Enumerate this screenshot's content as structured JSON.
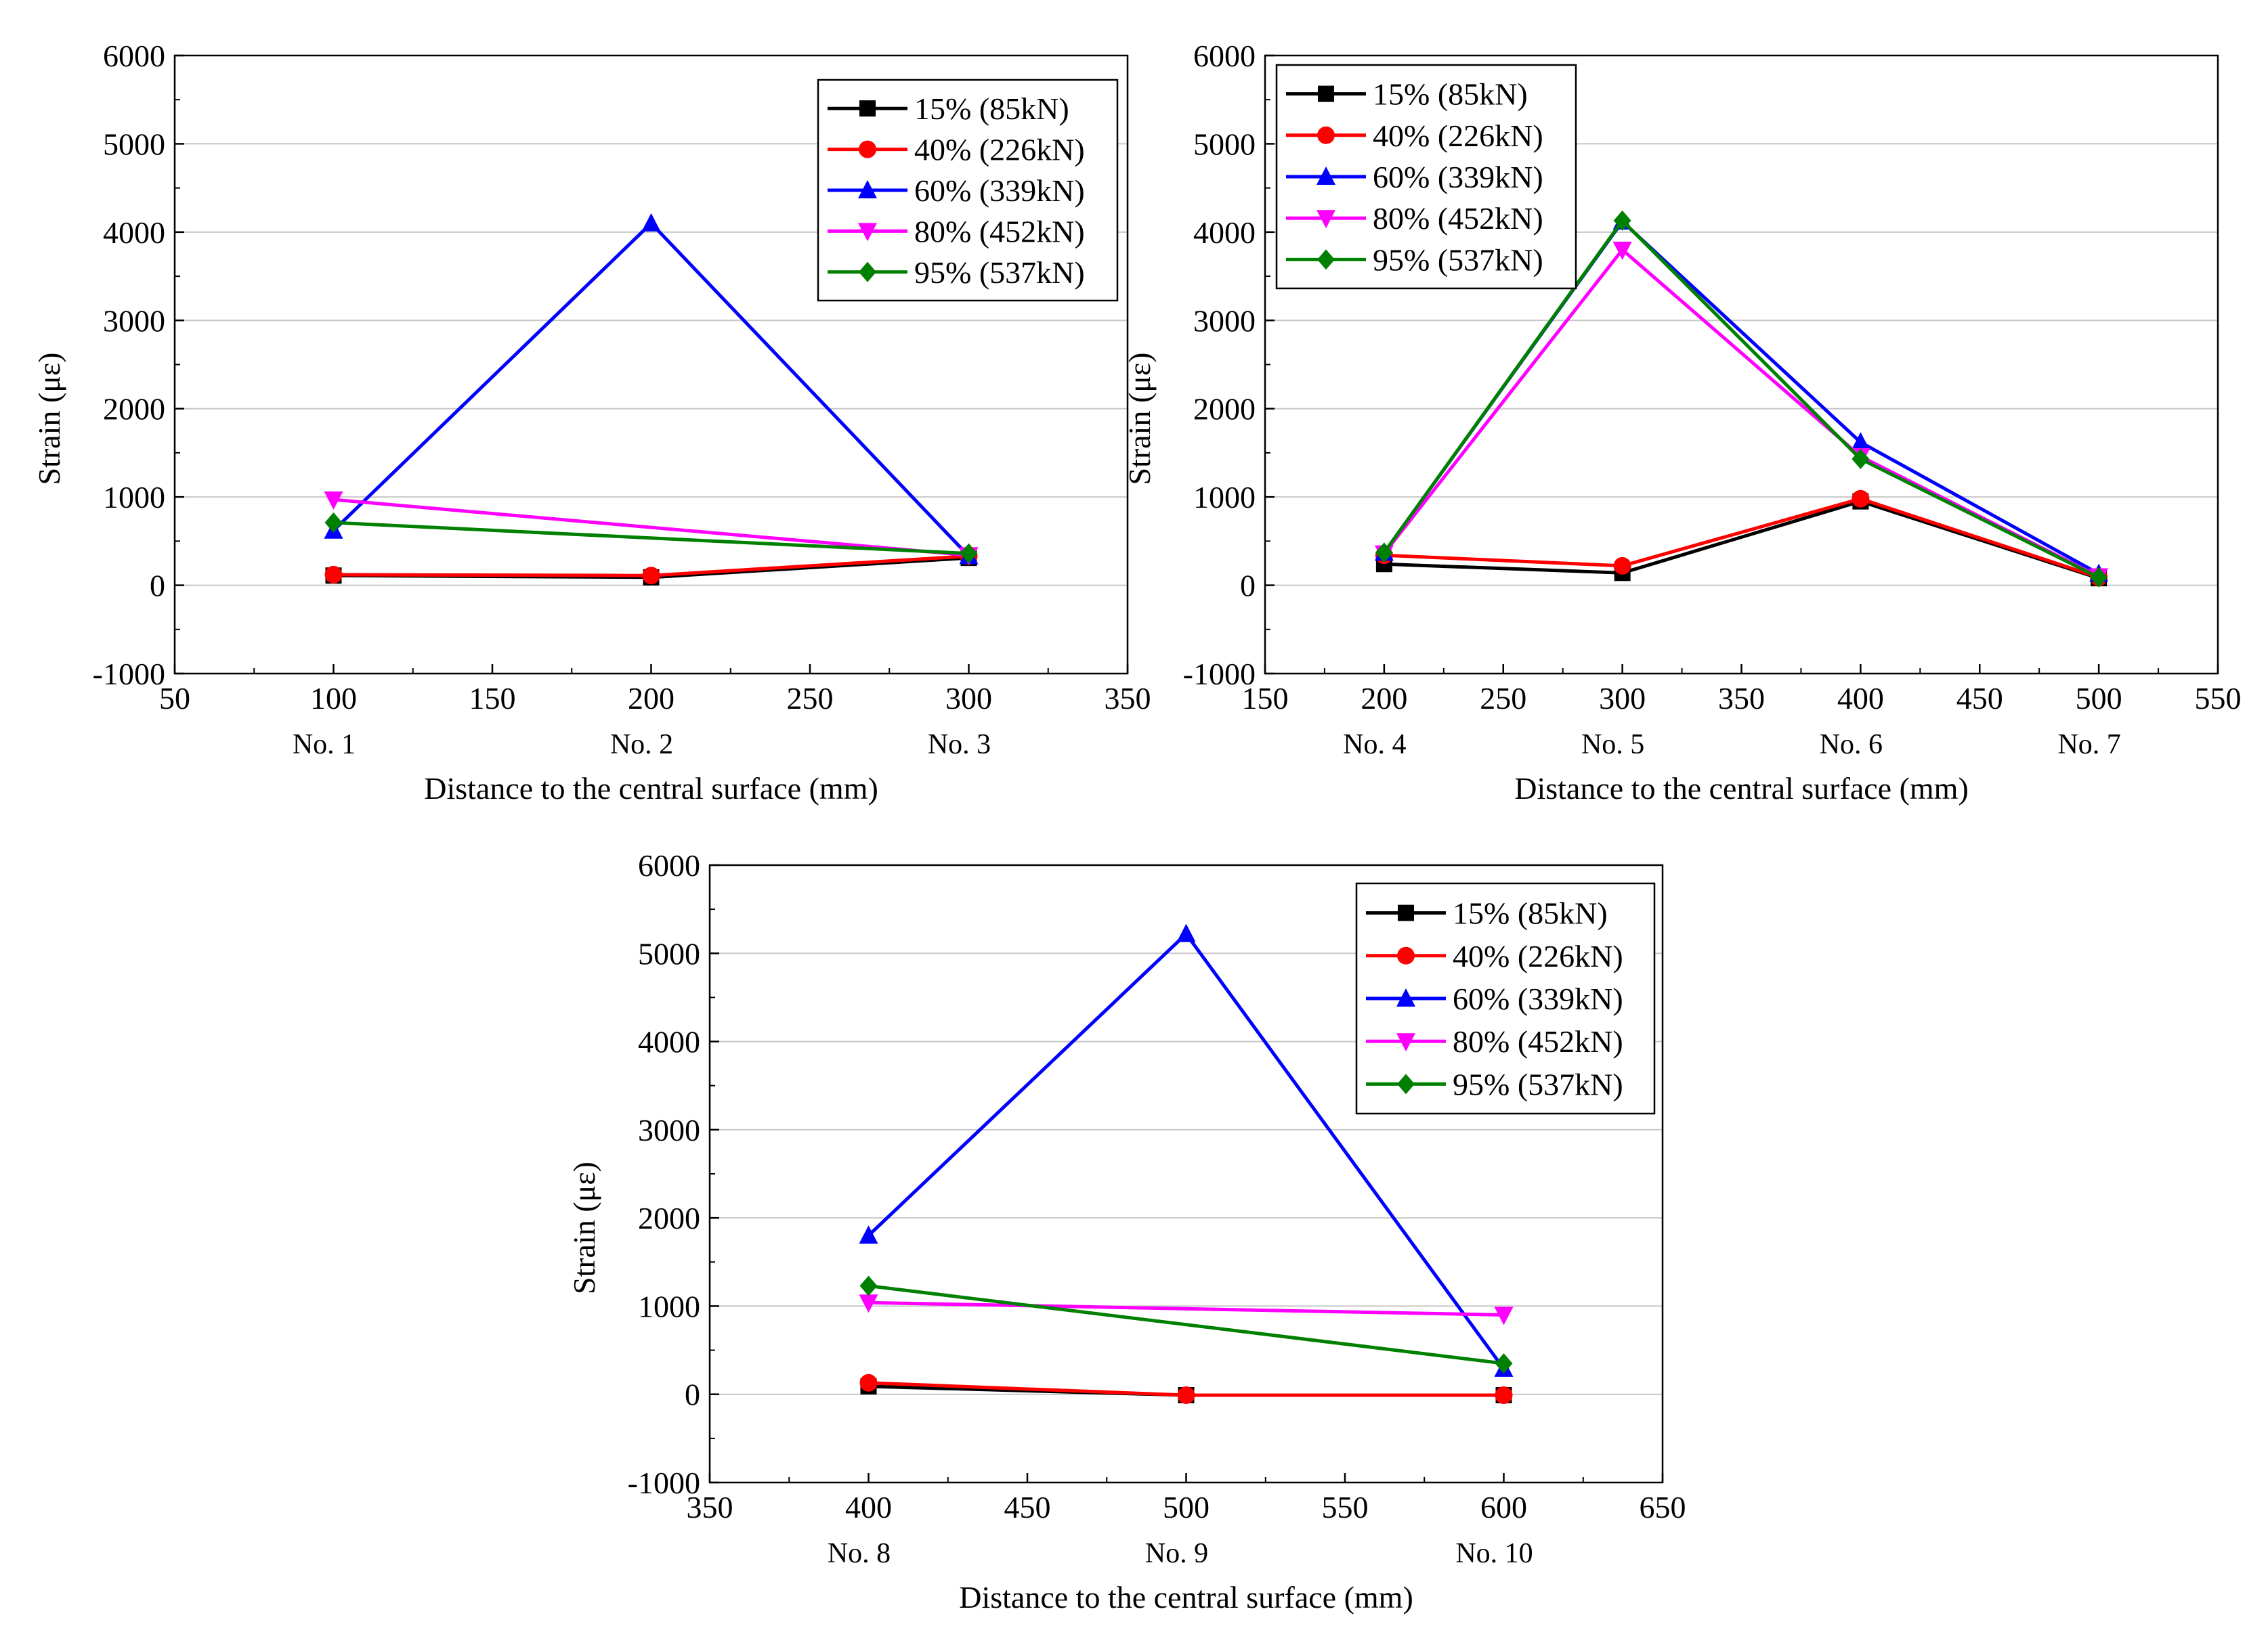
{
  "chart_data": [
    {
      "type": "line",
      "title": "",
      "xlabel": "Distance to the central surface (mm)",
      "ylabel": "Strain (με)",
      "xlim": [
        50,
        350
      ],
      "ylim": [
        -1000,
        6000
      ],
      "xticks": [
        50,
        100,
        150,
        200,
        250,
        300,
        350
      ],
      "yticks": [
        -1000,
        0,
        1000,
        2000,
        3000,
        4000,
        5000,
        6000
      ],
      "grid": "horizontal",
      "legend_position": "top-right",
      "gauges": [
        {
          "x": 100,
          "label": "No. 1"
        },
        {
          "x": 200,
          "label": "No. 2"
        },
        {
          "x": 300,
          "label": "No. 3"
        }
      ],
      "x": [
        100,
        200,
        300
      ],
      "series": [
        {
          "name": "15% (85kN)",
          "values": [
            110,
            90,
            310
          ]
        },
        {
          "name": "40% (226kN)",
          "values": [
            120,
            110,
            330
          ]
        },
        {
          "name": "60% (339kN)",
          "values": [
            620,
            4100,
            330
          ]
        },
        {
          "name": "80% (452kN)",
          "values": [
            970,
            null,
            340
          ]
        },
        {
          "name": "95% (537kN)",
          "values": [
            710,
            null,
            360
          ]
        }
      ]
    },
    {
      "type": "line",
      "title": "",
      "xlabel": "Distance to the central surface (mm)",
      "ylabel": "Strain (με)",
      "xlim": [
        150,
        550
      ],
      "ylim": [
        -1000,
        6000
      ],
      "xticks": [
        150,
        200,
        250,
        300,
        350,
        400,
        450,
        500,
        550
      ],
      "yticks": [
        -1000,
        0,
        1000,
        2000,
        3000,
        4000,
        5000,
        6000
      ],
      "grid": "horizontal",
      "legend_position": "top-left",
      "gauges": [
        {
          "x": 200,
          "label": "No. 4"
        },
        {
          "x": 300,
          "label": "No. 5"
        },
        {
          "x": 400,
          "label": "No. 6"
        },
        {
          "x": 500,
          "label": "No. 7"
        }
      ],
      "x": [
        200,
        300,
        400,
        500
      ],
      "series": [
        {
          "name": "15% (85kN)",
          "values": [
            240,
            140,
            950,
            80
          ]
        },
        {
          "name": "40% (226kN)",
          "values": [
            340,
            220,
            980,
            90
          ]
        },
        {
          "name": "60% (339kN)",
          "values": [
            370,
            4120,
            1620,
            130
          ]
        },
        {
          "name": "80% (452kN)",
          "values": [
            360,
            3800,
            1460,
            100
          ]
        },
        {
          "name": "95% (537kN)",
          "values": [
            370,
            4130,
            1430,
            90
          ]
        }
      ]
    },
    {
      "type": "line",
      "title": "",
      "xlabel": "Distance to the central surface (mm)",
      "ylabel": "Strain (με)",
      "xlim": [
        350,
        650
      ],
      "ylim": [
        -1000,
        6000
      ],
      "xticks": [
        350,
        400,
        450,
        500,
        550,
        600,
        650
      ],
      "yticks": [
        -1000,
        0,
        1000,
        2000,
        3000,
        4000,
        5000,
        6000
      ],
      "grid": "horizontal",
      "legend_position": "top-right",
      "gauges": [
        {
          "x": 400,
          "label": "No. 8"
        },
        {
          "x": 500,
          "label": "No. 9"
        },
        {
          "x": 600,
          "label": "No. 10"
        }
      ],
      "x": [
        400,
        500,
        600
      ],
      "series": [
        {
          "name": "15% (85kN)",
          "values": [
            90,
            -10,
            -10
          ]
        },
        {
          "name": "40% (226kN)",
          "values": [
            130,
            -10,
            -10
          ]
        },
        {
          "name": "60% (339kN)",
          "values": [
            1800,
            5220,
            290
          ]
        },
        {
          "name": "80% (452kN)",
          "values": [
            1040,
            null,
            900
          ]
        },
        {
          "name": "95% (537kN)",
          "values": [
            1230,
            null,
            350
          ]
        }
      ]
    }
  ],
  "series_style": [
    {
      "color": "#000000",
      "marker": "square"
    },
    {
      "color": "#ff0000",
      "marker": "circle"
    },
    {
      "color": "#0000ff",
      "marker": "triangle-up"
    },
    {
      "color": "#ff00ff",
      "marker": "triangle-down"
    },
    {
      "color": "#008000",
      "marker": "diamond"
    }
  ]
}
